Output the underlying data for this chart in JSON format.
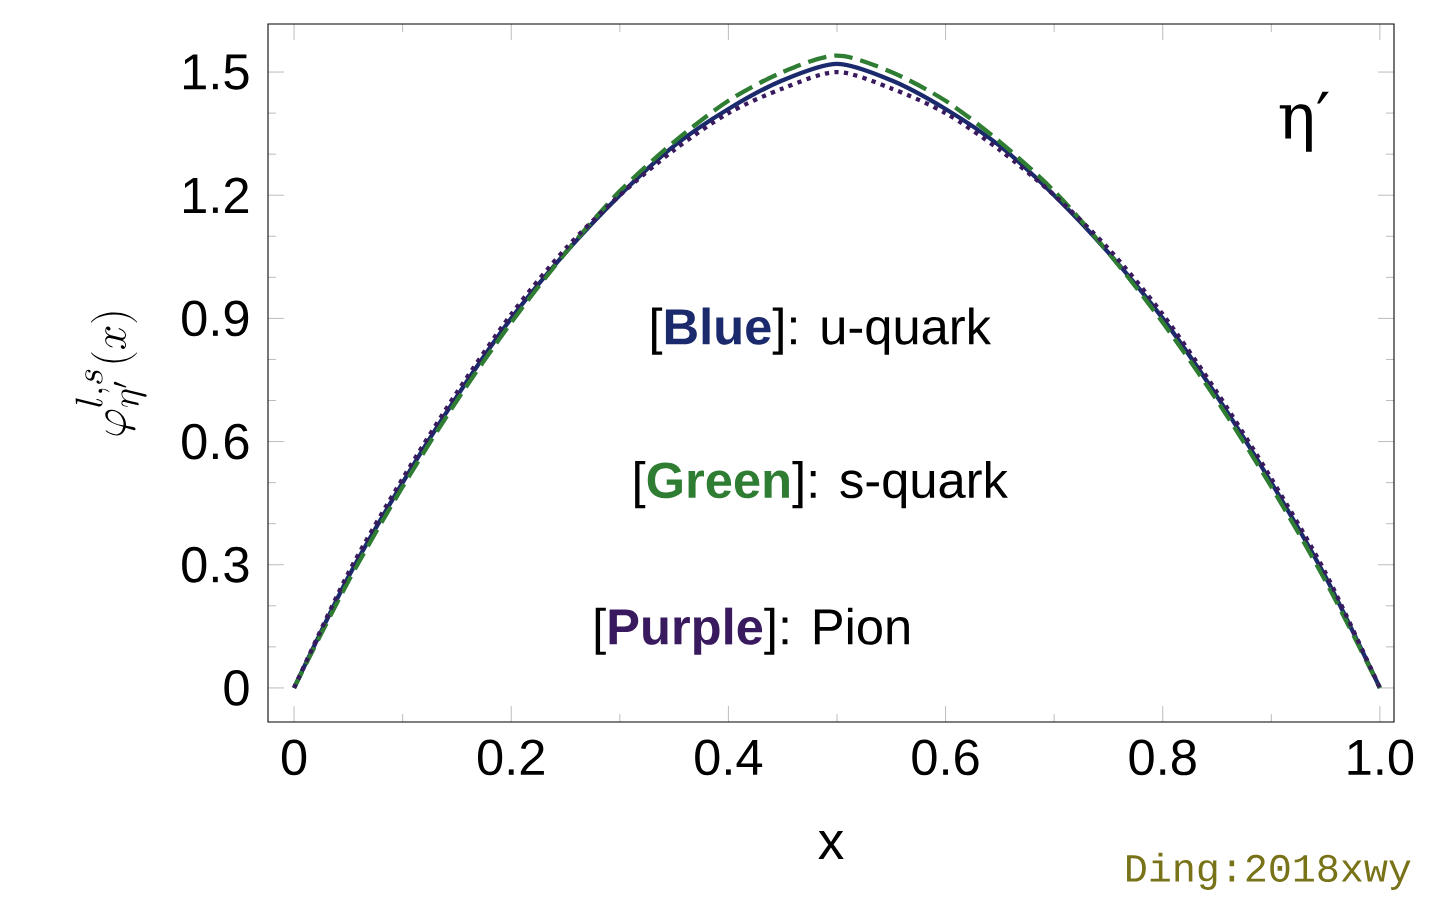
{
  "chart_data": {
    "type": "line",
    "xlabel": "x",
    "ylabel": "\\varphi^{l,s}_{\\eta'}(x)",
    "x": [
      0,
      0.05,
      0.1,
      0.15,
      0.2,
      0.25,
      0.3,
      0.35,
      0.4,
      0.45,
      0.5,
      0.55,
      0.6,
      0.65,
      0.7,
      0.75,
      0.8,
      0.85,
      0.9,
      0.95,
      1.0
    ],
    "series": [
      {
        "color": "#1a2a6c",
        "line_style": "solid",
        "values": [
          0,
          0.27,
          0.5,
          0.71,
          0.9,
          1.06,
          1.2,
          1.32,
          1.41,
          1.48,
          1.52,
          1.48,
          1.41,
          1.32,
          1.2,
          1.06,
          0.9,
          0.71,
          0.5,
          0.27,
          0
        ]
      },
      {
        "color": "#2e7d32",
        "line_style": "dashed",
        "values": [
          0,
          0.26,
          0.49,
          0.7,
          0.89,
          1.06,
          1.21,
          1.33,
          1.43,
          1.5,
          1.54,
          1.5,
          1.43,
          1.33,
          1.21,
          1.06,
          0.89,
          0.7,
          0.49,
          0.26,
          0
        ]
      },
      {
        "color": "#3a1a5e",
        "line_style": "dotted",
        "values": [
          0,
          0.28,
          0.51,
          0.72,
          0.91,
          1.07,
          1.2,
          1.31,
          1.4,
          1.46,
          1.5,
          1.46,
          1.4,
          1.31,
          1.2,
          1.07,
          0.91,
          0.72,
          0.51,
          0.28,
          0
        ]
      }
    ],
    "annotations": [
      "[**Blue**]: u-quark",
      "[**Green**]: s-quark",
      "[**Purple**]: Pion",
      "η′",
      "Ding:2018xwy"
    ],
    "xlim": [
      -0.024,
      1.013
    ],
    "ylim": [
      -0.083,
      1.617
    ],
    "xticks": [
      0,
      0.2,
      0.4,
      0.6,
      0.8,
      {
        "value": 1.0,
        "label": "1.0"
      }
    ],
    "yticks": [
      0,
      0.3,
      0.6,
      0.9,
      1.2,
      1.5
    ],
    "grid": false,
    "marker": "none"
  }
}
